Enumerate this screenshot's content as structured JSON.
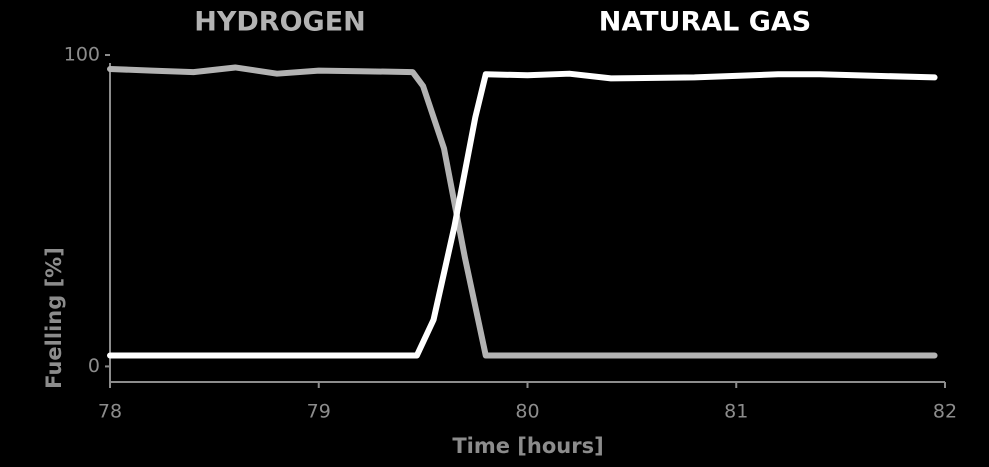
{
  "chart_data": {
    "type": "line",
    "xlabel": "Time [hours]",
    "ylabel": "Fuelling [%]",
    "xlim": [
      78,
      82
    ],
    "xticks": [
      78,
      79,
      80,
      81,
      82
    ],
    "ylim": [
      -5,
      100
    ],
    "yticks": [
      0,
      100
    ],
    "series": [
      {
        "name": "HYDROGEN",
        "color": "#b3b3b3",
        "x": [
          78,
          78.2,
          78.4,
          78.6,
          78.8,
          79,
          79.2,
          79.45,
          79.5,
          79.6,
          79.7,
          79.8,
          80,
          81.95
        ],
        "values": [
          95.5,
          95,
          94.5,
          96,
          94,
          95,
          94.8,
          94.5,
          90,
          70,
          35,
          3.5,
          3.5,
          3.5
        ]
      },
      {
        "name": "NATURAL GAS",
        "color": "#ffffff",
        "x": [
          78,
          79.47,
          79.55,
          79.65,
          79.75,
          79.8,
          80,
          80.2,
          80.4,
          80.8,
          81.2,
          81.4,
          81.95
        ],
        "values": [
          3.5,
          3.5,
          15,
          45,
          80,
          93.8,
          93.5,
          94,
          92.5,
          92.8,
          93.8,
          93.8,
          92.8
        ]
      }
    ]
  }
}
